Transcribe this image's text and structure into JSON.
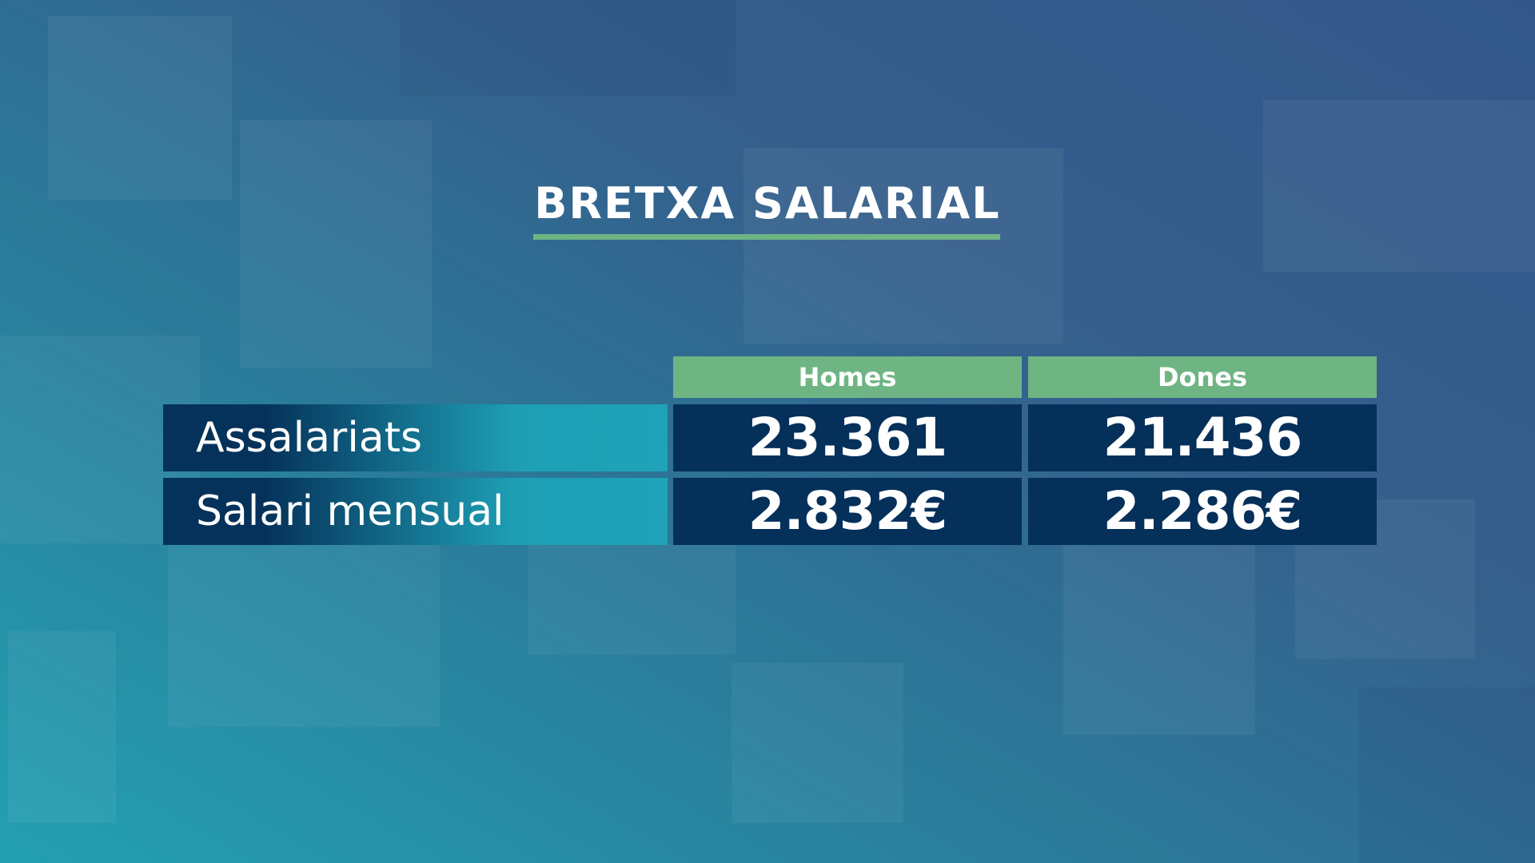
{
  "title": "BRETXA SALARIAL",
  "table": {
    "columns": [
      "Homes",
      "Dones"
    ],
    "rows": [
      {
        "label": "Assalariats",
        "cells": [
          "23.361",
          "21.436"
        ]
      },
      {
        "label": "Salari mensual",
        "cells": [
          "2.832€",
          "2.286€"
        ]
      }
    ]
  }
}
